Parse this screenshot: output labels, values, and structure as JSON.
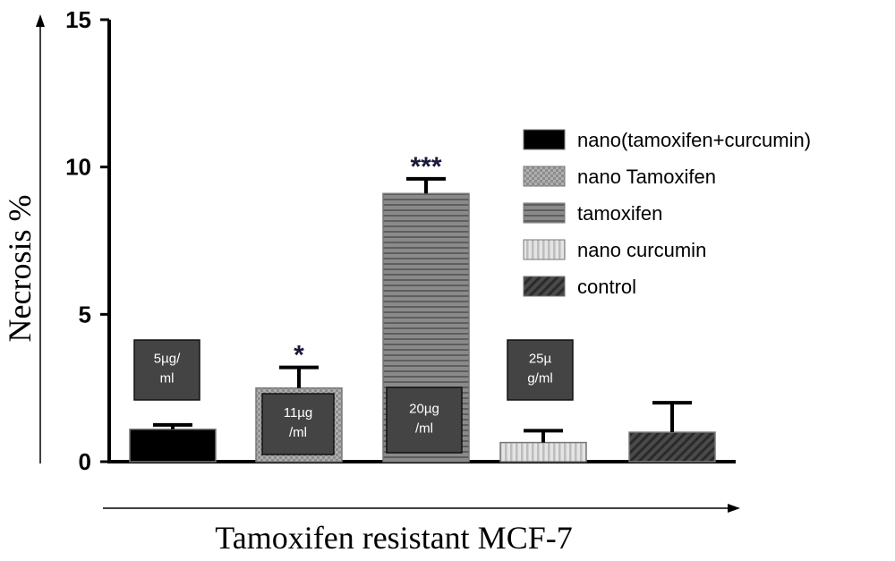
{
  "chart_data": {
    "type": "bar",
    "title": "",
    "xlabel": "Tamoxifen resistant MCF-7",
    "ylabel": "Necrosis %",
    "ylim": [
      0,
      15
    ],
    "yticks": [
      "0",
      "5",
      "10",
      "15"
    ],
    "legend_position": "right",
    "series": [
      {
        "name": "nano(tamoxifen+curcumin)",
        "value": 1.1,
        "error": 0.15,
        "significance": "",
        "dose": "5µg/\nml",
        "pattern": "solid",
        "color": "#000000"
      },
      {
        "name": "nano Tamoxifen",
        "value": 2.5,
        "error": 0.7,
        "significance": "*",
        "dose": "11µg\n/ml",
        "pattern": "checker",
        "color": "#9a9a9a"
      },
      {
        "name": "tamoxifen",
        "value": 9.1,
        "error": 0.5,
        "significance": "***",
        "dose": "20µg\n/ml",
        "pattern": "hlines",
        "color": "#7a7a7a"
      },
      {
        "name": "nano curcumin",
        "value": 0.65,
        "error": 0.4,
        "significance": "",
        "dose": "25µ\ng/ml",
        "pattern": "vlines",
        "color": "#d2d2d2"
      },
      {
        "name": "control",
        "value": 1.0,
        "error": 1.0,
        "significance": "",
        "dose": "",
        "pattern": "diag",
        "color": "#555555"
      }
    ]
  }
}
